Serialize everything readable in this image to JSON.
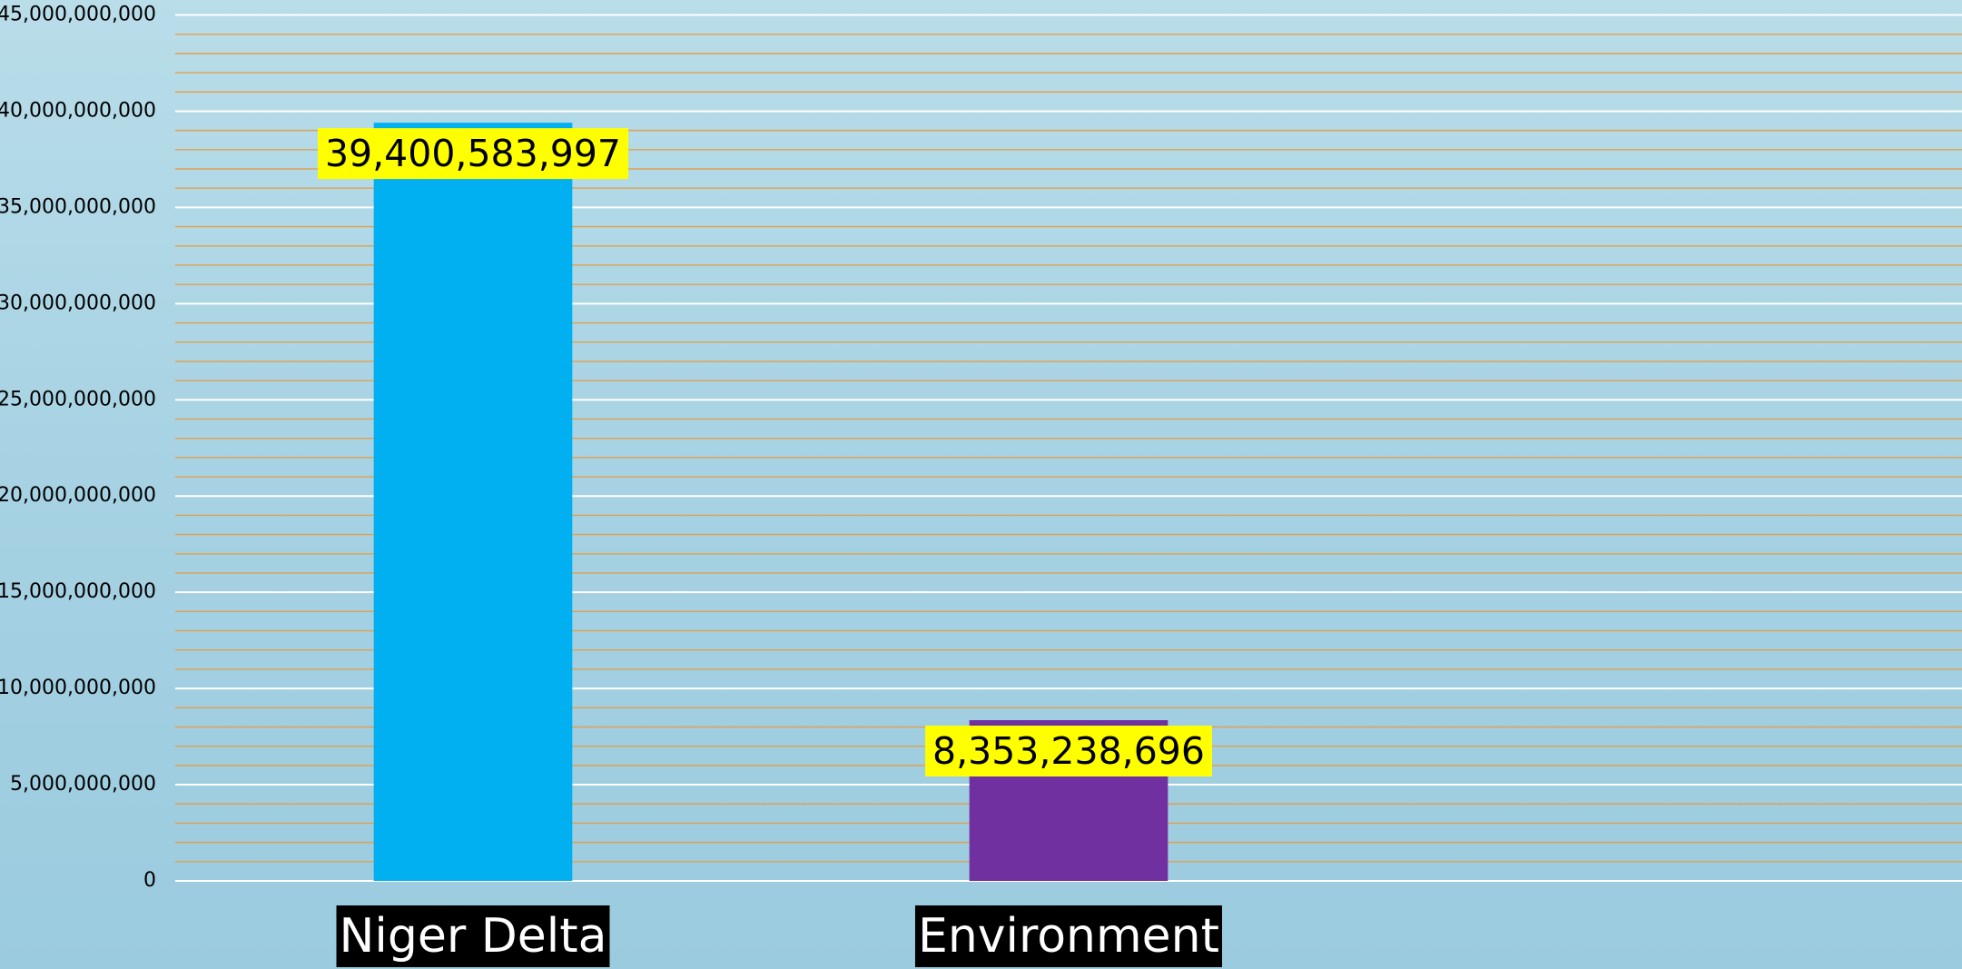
{
  "chart_data": {
    "type": "bar",
    "categories": [
      "Niger Delta",
      "Environment",
      null
    ],
    "values": [
      39400583997,
      8353238696,
      null
    ],
    "value_labels": [
      "39,400,583,997",
      "8,353,238,696",
      null
    ],
    "colors": [
      "#00b0f0",
      "#7030a0",
      null
    ],
    "ylim": [
      0,
      45000000000
    ],
    "yticks": [
      0,
      {
        "value": 5000000000,
        "label": "5,000,000,000"
      },
      {
        "value": 10000000000,
        "label": "10,000,000,000"
      },
      {
        "value": 15000000000,
        "label": "15,000,000,000"
      },
      {
        "value": 20000000000,
        "label": "20,000,000,000"
      },
      {
        "value": 25000000000,
        "label": "25,000,000,000"
      },
      {
        "value": 30000000000,
        "label": "30,000,000,000"
      },
      {
        "value": 35000000000,
        "label": "35,000,000,000"
      },
      {
        "value": 40000000000,
        "label": "40,000,000,000"
      },
      {
        "value": 45000000000,
        "label": "45,000,000,000"
      }
    ],
    "grid": true,
    "grid_color": "#ffffff",
    "minor_grid_color": "#e0a050"
  }
}
